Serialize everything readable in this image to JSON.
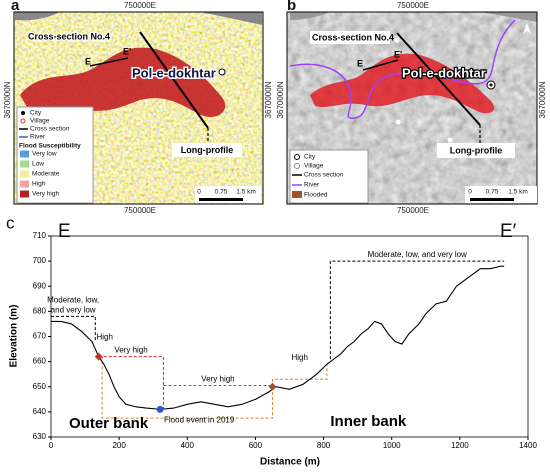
{
  "panels": {
    "a": {
      "label": "a",
      "easting": "750000E",
      "northing": "3670000N",
      "cross_section": "Cross-section No.4",
      "e": "E",
      "e_prime": "E'",
      "town": "Pol-e-dokhtar",
      "long_profile": "Long-profile",
      "legend": {
        "city": "City",
        "village": "Village",
        "cross_section": "Cross section",
        "river": "River",
        "title": "Flood Susceptibility",
        "classes": [
          {
            "name": "Very low",
            "color": "#5b9bd5"
          },
          {
            "name": "Low",
            "color": "#a8d88a"
          },
          {
            "name": "Moderate",
            "color": "#f2ec9b"
          },
          {
            "name": "High",
            "color": "#f4a3a3"
          },
          {
            "name": "Very high",
            "color": "#b22222"
          }
        ]
      },
      "scale": {
        "start": "0",
        "mid": "0.75",
        "end": "1.5 km"
      }
    },
    "b": {
      "label": "b",
      "easting": "750000E",
      "northing": "3670000N",
      "cross_section": "Cross-section No.4",
      "e": "E",
      "e_prime": "E'",
      "town": "Pol-e-dokhtar",
      "long_profile": "Long-profile",
      "legend": {
        "city": "City",
        "village": "Village",
        "cross_section": "Cross section",
        "river": "River",
        "flooded": "Flooded",
        "flooded_color": "#a0522d"
      },
      "scale": {
        "start": "0",
        "mid": "0.75",
        "end": "1.5 km"
      }
    }
  },
  "chart_data": {
    "type": "line",
    "label": "c",
    "start_label": "E",
    "end_label": "E′",
    "xlabel": "Distance (m)",
    "ylabel": "Elevation (m)",
    "color": "#000000",
    "x": [
      0,
      30,
      60,
      90,
      120,
      140,
      155,
      170,
      185,
      200,
      220,
      250,
      280,
      320,
      360,
      400,
      440,
      480,
      520,
      560,
      600,
      640,
      660,
      700,
      740,
      780,
      810,
      830,
      850,
      870,
      890,
      910,
      930,
      950,
      970,
      990,
      1010,
      1030,
      1050,
      1080,
      1100,
      1130,
      1160,
      1190,
      1230,
      1260,
      1290,
      1320,
      1330
    ],
    "values": [
      676,
      676,
      675,
      672,
      668,
      662,
      659,
      655,
      650,
      646,
      643,
      642,
      641.5,
      641,
      641.5,
      643,
      644,
      643,
      642,
      643,
      645,
      648,
      650,
      649,
      651,
      655,
      659,
      661,
      663,
      666,
      668,
      671,
      673,
      676,
      675,
      671,
      668,
      667,
      671,
      675,
      679,
      683,
      684,
      690,
      694,
      697,
      697,
      698,
      698
    ],
    "xlim": [
      0,
      1400
    ],
    "ylim": [
      630,
      710
    ],
    "xticks": [
      0,
      200,
      400,
      600,
      800,
      1000,
      1200,
      1400
    ],
    "yticks": [
      630,
      640,
      650,
      660,
      670,
      680,
      690,
      700,
      710
    ],
    "markers": [
      {
        "label": "High",
        "x": 140,
        "y": 662,
        "color": "#c0392b",
        "shape": "diamond"
      },
      {
        "label": "Flood event in 2019",
        "x": 320,
        "y": 641,
        "color": "#3355cc",
        "shape": "circle"
      },
      {
        "x": 650,
        "y": 650,
        "color": "#a0522d",
        "shape": "diamond"
      }
    ],
    "zones": [
      {
        "lines": [
          "Moderate, low,",
          "and very low"
        ],
        "color": "#000000",
        "points": [
          [
            0,
            678
          ],
          [
            130,
            678
          ],
          [
            130,
            668
          ]
        ]
      },
      {
        "label": "Very high",
        "color": "#d62728",
        "points": [
          [
            140,
            662
          ],
          [
            330,
            662
          ],
          [
            330,
            641
          ]
        ]
      },
      {
        "color": "#e08020",
        "points": [
          [
            150,
            662
          ],
          [
            150,
            637.5
          ],
          [
            650,
            637.5
          ],
          [
            650,
            651
          ]
        ]
      },
      {
        "label": "Very high",
        "color": "#2ca02c",
        "points": [
          [
            330,
            650.5
          ],
          [
            650,
            650.5
          ]
        ]
      },
      {
        "label": "High",
        "color": "#e08020",
        "points": [
          [
            650,
            650
          ],
          [
            650,
            653
          ],
          [
            810,
            653
          ],
          [
            810,
            659
          ]
        ]
      },
      {
        "label": "Moderate, low, and very low",
        "color": "#000000",
        "points": [
          [
            820,
            661
          ],
          [
            820,
            700
          ],
          [
            1330,
            700
          ]
        ]
      }
    ],
    "annotations": [
      "Outer bank",
      "Inner bank"
    ]
  }
}
